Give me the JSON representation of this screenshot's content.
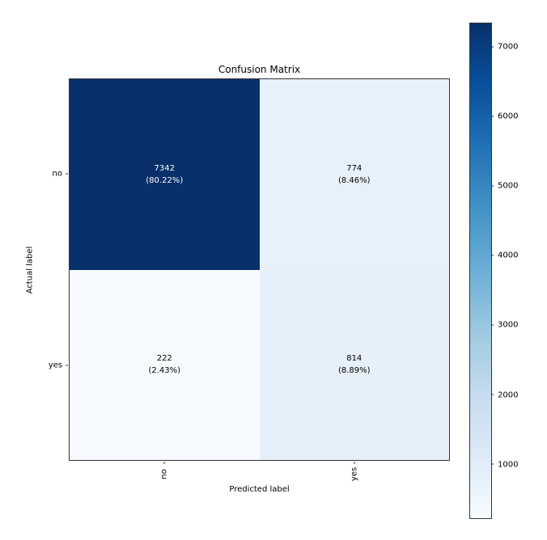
{
  "figure": {
    "background": "#ffffff"
  },
  "chart_data": {
    "type": "heatmap",
    "title": "Confusion Matrix",
    "xlabel": "Predicted label",
    "ylabel": "Actual label",
    "x_categories": [
      "no",
      "yes"
    ],
    "y_categories": [
      "no",
      "yes"
    ],
    "matrix": [
      [
        7342,
        774
      ],
      [
        222,
        814
      ]
    ],
    "cells": [
      {
        "row": "no",
        "col": "no",
        "value": 7342,
        "percent": "(80.22%)"
      },
      {
        "row": "no",
        "col": "yes",
        "value": 774,
        "percent": "(8.46%)"
      },
      {
        "row": "yes",
        "col": "no",
        "value": 222,
        "percent": "(2.43%)"
      },
      {
        "row": "yes",
        "col": "yes",
        "value": 814,
        "percent": "(8.89%)"
      }
    ],
    "colorbar": {
      "ticks": [
        1000,
        2000,
        3000,
        4000,
        5000,
        6000,
        7000
      ],
      "vmin": 222,
      "vmax": 7342,
      "colormap": "Blues",
      "position": "right"
    },
    "grid": false
  },
  "colors": {
    "cmap_stops": [
      "#f7fbff",
      "#deebf7",
      "#c6dbef",
      "#9ecae1",
      "#6baed6",
      "#4292c6",
      "#2171b5",
      "#08519c",
      "#08306b"
    ],
    "cell_text_on_light": "#000000",
    "cell_text_on_dark": "#ffffff",
    "axis": "#333333"
  }
}
